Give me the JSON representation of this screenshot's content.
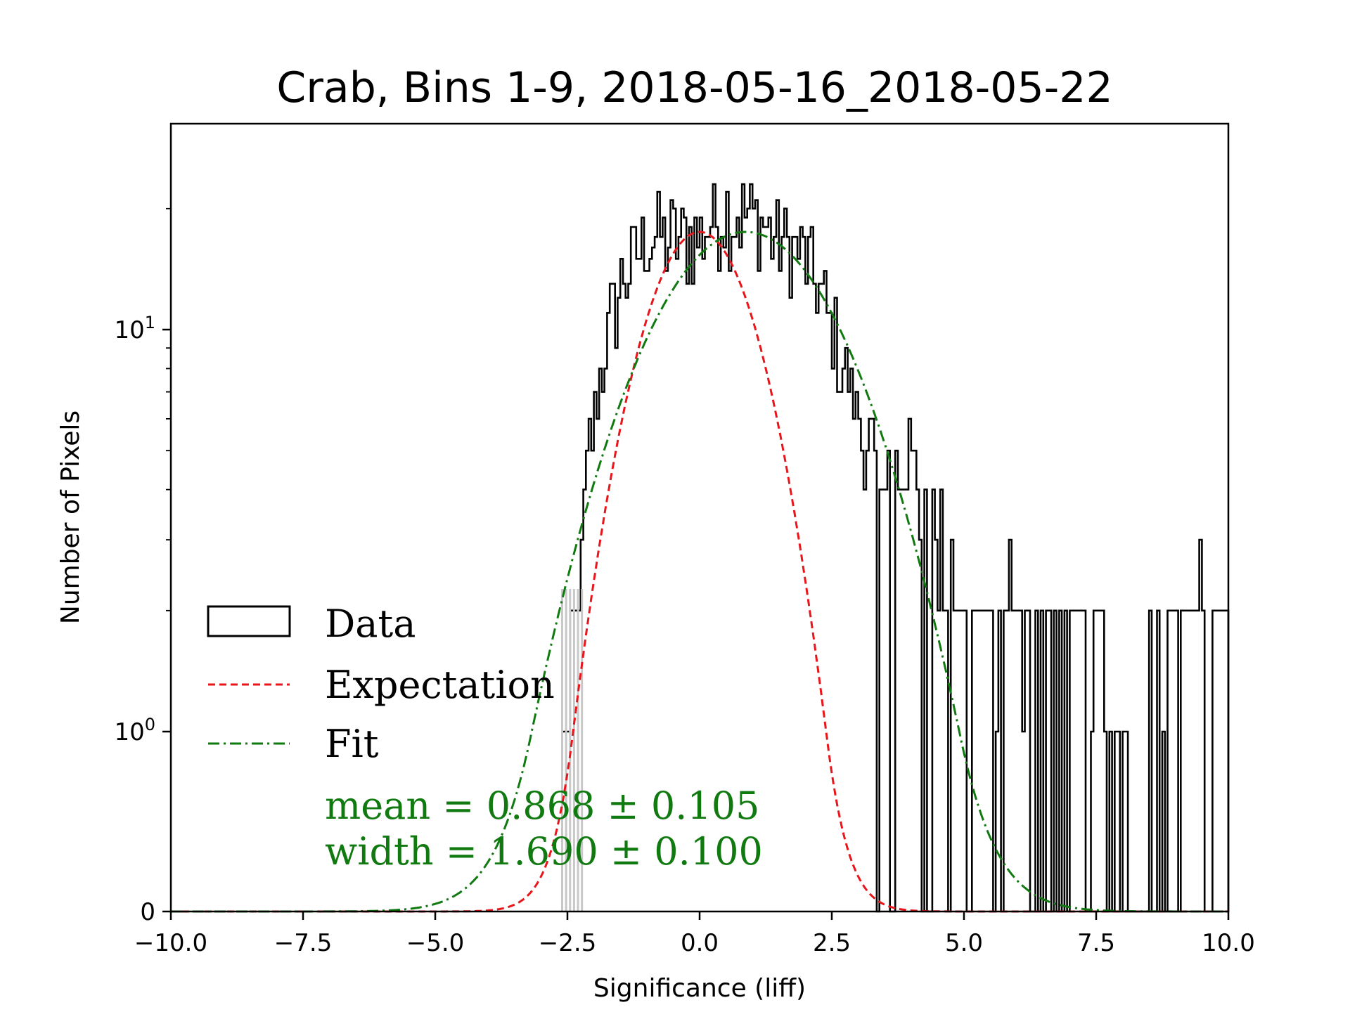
{
  "chart_data": {
    "type": "histogram",
    "title": "Crab, Bins 1-9, 2018-05-16_2018-05-22",
    "xlabel": "Significance (liff)",
    "ylabel": "Number of Pixels",
    "xlim": [
      -10.0,
      10.0
    ],
    "yscale": "symlog",
    "x_ticks": [
      "−10.0",
      "−7.5",
      "−5.0",
      "−2.5",
      "0.0",
      "2.5",
      "5.0",
      "7.5",
      "10.0"
    ],
    "x_tick_values": [
      -10.0,
      -7.5,
      -5.0,
      -2.5,
      0.0,
      2.5,
      5.0,
      7.5,
      10.0
    ],
    "y_ticks": [
      {
        "value": 0,
        "label": "0",
        "sup": ""
      },
      {
        "value": 1,
        "label": "10",
        "sup": "0"
      },
      {
        "value": 10,
        "label": "10",
        "sup": "1"
      }
    ],
    "series": [
      {
        "name": "Data",
        "kind": "step-histogram",
        "color": "#000000",
        "bin_start": -2.6,
        "bin_end": 10.0,
        "n_bins": 252,
        "approx_counts_centers": [
          -2.5,
          -2.2,
          -2.0,
          -1.5,
          -1.0,
          -0.5,
          0.0,
          0.5,
          1.0,
          1.5,
          2.0,
          2.5,
          3.0,
          3.5,
          4.0,
          4.5,
          5.0,
          6.0,
          7.0,
          8.0,
          9.0,
          10.0
        ],
        "approx_counts_values": [
          1,
          3,
          6,
          13,
          17,
          17,
          17,
          20,
          19,
          17,
          15,
          10,
          6,
          4,
          5,
          3,
          2,
          2,
          2,
          1,
          2,
          2
        ]
      },
      {
        "name": "Expectation",
        "kind": "gaussian",
        "color": "#e8151b",
        "dash": "dashed",
        "mean": 0.0,
        "width": 1.0,
        "peak": 17.5
      },
      {
        "name": "Fit",
        "kind": "gaussian",
        "color": "#107a10",
        "dash": "dashdot",
        "mean": 0.868,
        "width": 1.69,
        "peak": 17.5
      }
    ],
    "legend": {
      "placement": "lower-left",
      "entries": [
        "Data",
        "Expectation",
        "Fit"
      ]
    },
    "annotations": [
      "mean = 0.868 ± 0.105",
      "width = 1.690 ± 0.100"
    ]
  }
}
